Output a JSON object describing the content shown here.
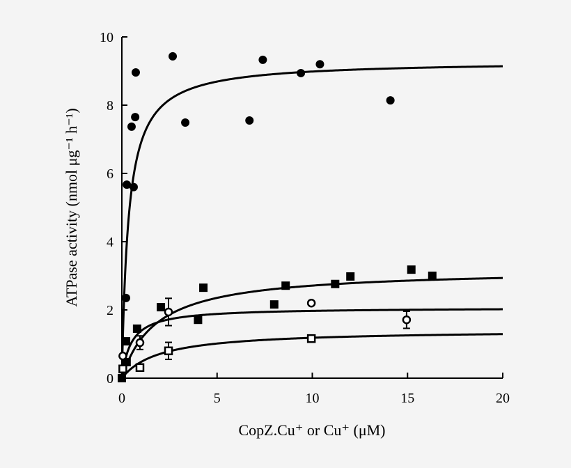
{
  "chart_data": {
    "type": "scatter",
    "title": "",
    "xlabel": "CopZ.Cu⁺ or Cu⁺ (μM)",
    "ylabel": "ATPase activity (nmol μg⁻¹ h⁻¹)",
    "xlim": [
      0,
      20
    ],
    "ylim": [
      0,
      10
    ],
    "xticks": [
      "0",
      "5",
      "10",
      "15",
      "20"
    ],
    "yticks": [
      "0",
      "2",
      "4",
      "6",
      "8",
      "10"
    ],
    "grid": false,
    "series": [
      {
        "marker": "filled-circle",
        "points": [
          [
            0.22,
            2.35
          ],
          [
            0.26,
            5.67
          ],
          [
            0.62,
            5.6
          ],
          [
            0.51,
            7.37
          ],
          [
            0.7,
            7.65
          ],
          [
            0.73,
            8.96
          ],
          [
            2.67,
            9.43
          ],
          [
            3.33,
            7.49
          ],
          [
            6.7,
            7.55
          ],
          [
            7.4,
            9.33
          ],
          [
            9.4,
            8.94
          ],
          [
            10.4,
            9.2
          ],
          [
            14.1,
            8.14
          ]
        ],
        "fit": {
          "model": "hyperbolic",
          "vmax": 9.3,
          "km": 0.35
        }
      },
      {
        "marker": "filled-square",
        "points": [
          [
            0,
            0
          ],
          [
            0.25,
            0.47
          ],
          [
            0.22,
            1.08
          ],
          [
            0.8,
            1.45
          ],
          [
            2.05,
            2.08
          ],
          [
            4.0,
            1.71
          ],
          [
            4.28,
            2.65
          ],
          [
            8.0,
            2.16
          ],
          [
            8.6,
            2.71
          ],
          [
            11.2,
            2.76
          ],
          [
            12.0,
            2.98
          ],
          [
            15.2,
            3.18
          ],
          [
            16.3,
            3.0
          ]
        ],
        "fit": {
          "model": "hyperbolic",
          "vmax": 3.2,
          "km": 1.8
        }
      },
      {
        "marker": "open-circle",
        "points": [
          [
            0.05,
            0.65,
            0
          ],
          [
            0.95,
            1.04,
            0.2
          ],
          [
            2.45,
            1.94,
            0.4
          ],
          [
            9.95,
            2.2,
            0
          ],
          [
            14.95,
            1.71,
            0.25
          ]
        ],
        "fit": {
          "model": "hyperbolic",
          "vmax": 2.07,
          "km": 0.5
        }
      },
      {
        "marker": "open-square",
        "points": [
          [
            0.05,
            0.27,
            0
          ],
          [
            0.95,
            0.31,
            0
          ],
          [
            2.45,
            0.8,
            0.25
          ],
          [
            9.95,
            1.16,
            0
          ]
        ],
        "fit": {
          "model": "hyperbolic",
          "vmax": 1.42,
          "km": 2.0
        }
      }
    ]
  }
}
